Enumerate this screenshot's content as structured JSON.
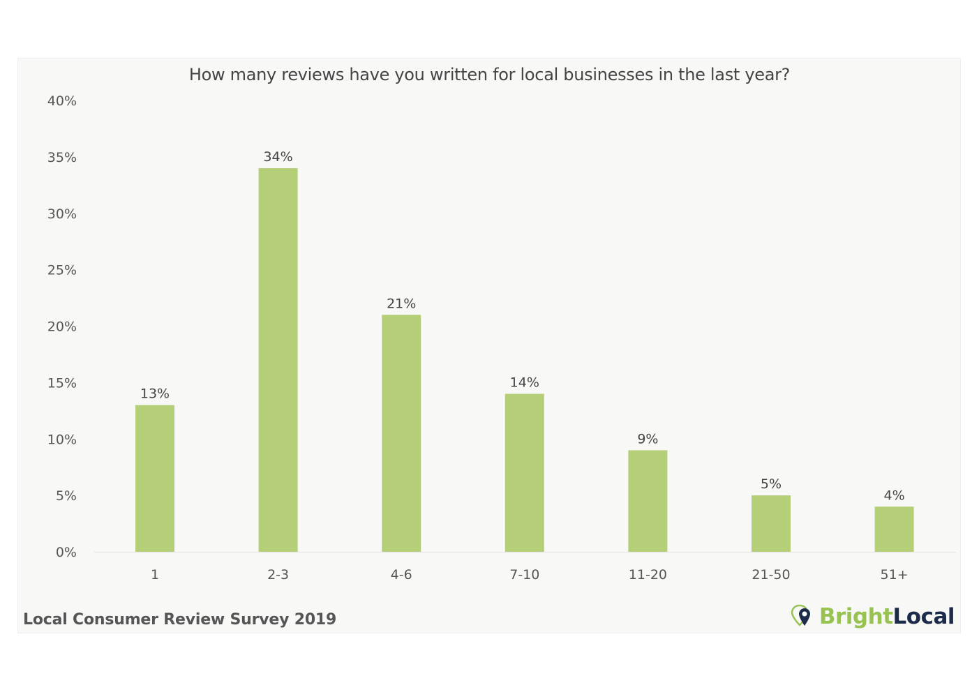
{
  "chart_data": {
    "type": "bar",
    "title": "How many reviews have you written for local businesses in the last year?",
    "categories": [
      "1",
      "2-3",
      "4-6",
      "7-10",
      "11-20",
      "21-50",
      "51+"
    ],
    "values": [
      13,
      34,
      21,
      14,
      9,
      5,
      4
    ],
    "data_labels": [
      "13%",
      "34%",
      "21%",
      "14%",
      "9%",
      "5%",
      "4%"
    ],
    "ylim": [
      0,
      40
    ],
    "yticks": [
      0,
      5,
      10,
      15,
      20,
      25,
      30,
      35,
      40
    ],
    "ytick_labels": [
      "0%",
      "5%",
      "10%",
      "15%",
      "20%",
      "25%",
      "30%",
      "35%",
      "40%"
    ],
    "xlabel": "",
    "ylabel": "",
    "grid": false,
    "bar_color": "#b5cf78"
  },
  "footer": {
    "source": "Local Consumer Review Survey 2019"
  },
  "brand": {
    "word1": "Bright",
    "word2": "Local",
    "color1": "#98c353",
    "color2": "#1d2b4a"
  }
}
